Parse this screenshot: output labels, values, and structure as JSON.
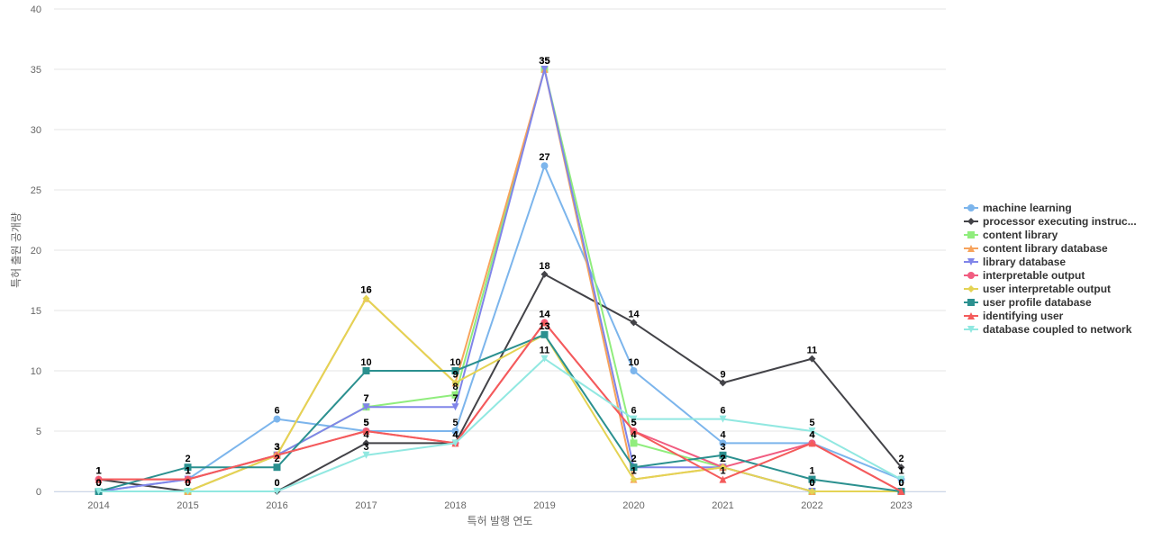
{
  "chart_data": {
    "type": "line",
    "title": "",
    "xlabel": "특허 발행 연도",
    "ylabel": "특허 출원 공개량",
    "ylim": [
      0,
      40
    ],
    "yticks": [
      0,
      5,
      10,
      15,
      20,
      25,
      30,
      35,
      40
    ],
    "grid": true,
    "legend_position": "right",
    "categories": [
      "2014",
      "2015",
      "2016",
      "2017",
      "2018",
      "2019",
      "2020",
      "2021",
      "2022",
      "2023"
    ],
    "series": [
      {
        "name": "machine learning",
        "legend_label": "machine learning",
        "color": "#7cb5ec",
        "marker": "circle",
        "values": [
          0,
          1,
          6,
          5,
          5,
          27,
          10,
          4,
          4,
          1
        ]
      },
      {
        "name": "processor executing instructions",
        "legend_label": "processor executing instruc...",
        "color": "#434348",
        "marker": "diamond",
        "values": [
          1,
          0,
          0,
          4,
          4,
          18,
          14,
          9,
          11,
          2
        ]
      },
      {
        "name": "content library",
        "legend_label": "content library",
        "color": "#90ed7d",
        "marker": "square",
        "values": [
          0,
          0,
          3,
          7,
          8,
          35,
          4,
          2,
          0,
          0
        ]
      },
      {
        "name": "content library database",
        "legend_label": "content library database",
        "color": "#f7a35c",
        "marker": "triangle",
        "values": [
          0,
          0,
          3,
          16,
          9,
          35,
          1,
          2,
          0,
          0
        ]
      },
      {
        "name": "library database",
        "legend_label": "library database",
        "color": "#8085e9",
        "marker": "triangle-down",
        "values": [
          0,
          1,
          3,
          7,
          7,
          35,
          2,
          2,
          0,
          0
        ]
      },
      {
        "name": "interpretable output",
        "legend_label": "interpretable output",
        "color": "#f15c80",
        "marker": "circle",
        "values": [
          1,
          1,
          3,
          5,
          4,
          14,
          5,
          2,
          4,
          0
        ]
      },
      {
        "name": "user interpretable output",
        "legend_label": "user interpretable output",
        "color": "#e4d354",
        "marker": "diamond",
        "values": [
          0,
          0,
          3,
          16,
          9,
          13,
          1,
          2,
          0,
          0
        ]
      },
      {
        "name": "user profile database",
        "legend_label": "user profile database",
        "color": "#2b908f",
        "marker": "square",
        "values": [
          0,
          2,
          2,
          10,
          10,
          13,
          2,
          3,
          1,
          0
        ]
      },
      {
        "name": "identifying user",
        "legend_label": "identifying user",
        "color": "#f45b5b",
        "marker": "triangle",
        "values": [
          1,
          1,
          3,
          5,
          4,
          14,
          5,
          1,
          4,
          0
        ]
      },
      {
        "name": "database coupled to network",
        "legend_label": "database coupled to network",
        "color": "#91e8e1",
        "marker": "triangle-down",
        "values": [
          0,
          0,
          0,
          3,
          4,
          11,
          6,
          6,
          5,
          1
        ]
      }
    ]
  }
}
